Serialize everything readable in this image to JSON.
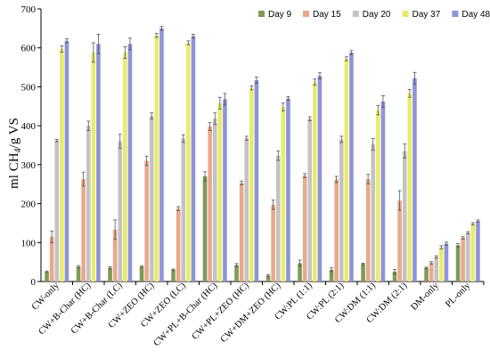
{
  "chart_data": {
    "type": "bar",
    "ylabel": "ml CH4/g VS",
    "ylim": [
      0,
      700
    ],
    "yticks": [
      0,
      100,
      200,
      300,
      400,
      500,
      600,
      700
    ],
    "grid": false,
    "legend_position": "top-right",
    "categories": [
      "CW-only",
      "CW+B-Char (HC)",
      "CW+B-Char (LC)",
      "CW+ZEO (HC)",
      "CW+ZEO (LC)",
      "CW+PL+B-Char (HC)",
      "CW+PL+ZEO (HC)",
      "CW+DM+ZEO (HC)",
      "CW:PL (1:1)",
      "CW:PL (2:1)",
      "CW:DM (1:1)",
      "CW:DM (2:1)",
      "DM-only",
      "PL-only"
    ],
    "series": [
      {
        "name": "Day 9",
        "color": "#7f9a56",
        "values": [
          25,
          38,
          35,
          38,
          30,
          270,
          42,
          15,
          47,
          30,
          45,
          25,
          35,
          93
        ],
        "errors": [
          2,
          3,
          3,
          2,
          2,
          12,
          4,
          3,
          8,
          5,
          2,
          6,
          2,
          4
        ]
      },
      {
        "name": "Day 15",
        "color": "#e8a98b",
        "values": [
          115,
          263,
          133,
          310,
          187,
          398,
          253,
          197,
          272,
          262,
          263,
          208,
          48,
          112
        ],
        "errors": [
          15,
          18,
          25,
          12,
          5,
          10,
          5,
          12,
          5,
          8,
          12,
          25,
          3,
          3
        ]
      },
      {
        "name": "Day 20",
        "color": "#c3c3c3",
        "values": [
          362,
          400,
          360,
          425,
          367,
          418,
          368,
          323,
          418,
          365,
          352,
          335,
          63,
          125
        ],
        "errors": [
          3,
          12,
          18,
          8,
          10,
          15,
          5,
          12,
          5,
          8,
          15,
          18,
          3,
          3
        ]
      },
      {
        "name": "Day 37",
        "color": "#e9ec6a",
        "values": [
          597,
          588,
          588,
          632,
          613,
          458,
          497,
          448,
          512,
          572,
          440,
          483,
          88,
          148
        ],
        "errors": [
          8,
          25,
          15,
          5,
          5,
          15,
          5,
          10,
          8,
          5,
          12,
          10,
          4,
          3
        ]
      },
      {
        "name": "Day 48",
        "color": "#8d94d8",
        "values": [
          618,
          610,
          610,
          650,
          630,
          468,
          517,
          470,
          528,
          588,
          462,
          522,
          97,
          155
        ],
        "errors": [
          5,
          25,
          15,
          5,
          5,
          15,
          8,
          5,
          8,
          5,
          15,
          15,
          4,
          3
        ]
      }
    ]
  }
}
